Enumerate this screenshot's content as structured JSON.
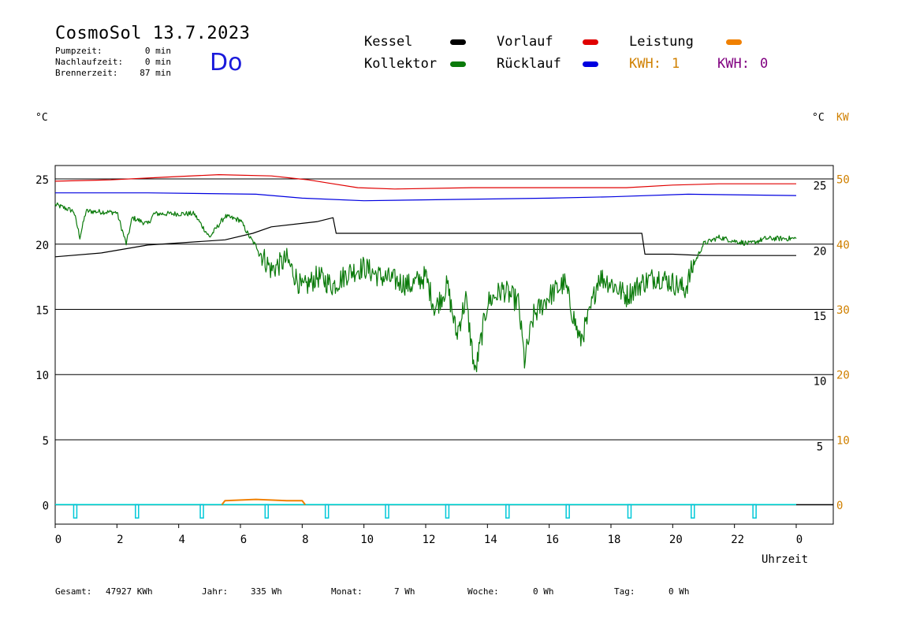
{
  "header": {
    "title": "CosmoSol 13.7.2023",
    "day": "Do",
    "stats": [
      {
        "label": "Pumpzeit:",
        "value": "0 min"
      },
      {
        "label": "Nachlaufzeit:",
        "value": "0 min"
      },
      {
        "label": "Brennerzeit:",
        "value": "87 min"
      }
    ]
  },
  "legend": {
    "kessel": {
      "label": "Kessel",
      "color": "#000000"
    },
    "kollektor": {
      "label": "Kollektor",
      "color": "#0a7a0a"
    },
    "vorlauf": {
      "label": "Vorlauf",
      "color": "#e00000"
    },
    "ruecklauf": {
      "label": "Rücklauf",
      "color": "#0000e0"
    },
    "leistung": {
      "label": "Leistung",
      "color": "#f08000"
    },
    "kwh1": {
      "label": "KWH:",
      "value": "1",
      "color": "#d08000"
    },
    "kwh2": {
      "label": "KWH:",
      "value": "0",
      "color": "#800080"
    }
  },
  "axes": {
    "left_unit": "°C",
    "right_unit": "°C",
    "right_unit2": "KW",
    "xlabel": "Uhrzeit"
  },
  "footer": [
    {
      "label": "Gesamt:",
      "value": "47927 KWh"
    },
    {
      "label": "Jahr:",
      "value": "335 Wh"
    },
    {
      "label": "Monat:",
      "value": "7 Wh"
    },
    {
      "label": "Woche:",
      "value": "0 Wh"
    },
    {
      "label": "Tag:",
      "value": "0 Wh"
    }
  ],
  "chart_data": {
    "type": "line",
    "xlim": [
      0,
      24
    ],
    "ylim": [
      -1.5,
      26
    ],
    "y2lim": [
      -3,
      52
    ],
    "x_ticks": [
      "0",
      "2",
      "4",
      "6",
      "8",
      "10",
      "12",
      "14",
      "16",
      "18",
      "20",
      "22",
      "0"
    ],
    "y_left_ticks": [
      "0",
      "5",
      "10",
      "15",
      "20",
      "25"
    ],
    "y_right_ticks": [
      "5",
      "10",
      "15",
      "20",
      "25"
    ],
    "y_right2_ticks": [
      "0",
      "10",
      "20",
      "30",
      "40",
      "50"
    ],
    "grid": true,
    "series": [
      {
        "name": "Vorlauf",
        "color": "#e00000",
        "x": [
          0,
          1.8,
          3.5,
          5.3,
          7.0,
          8.2,
          9.0,
          9.8,
          11.0,
          13.5,
          16.5,
          18.5,
          20.0,
          21.5,
          24.0
        ],
        "y": [
          24.8,
          24.9,
          25.1,
          25.3,
          25.2,
          24.9,
          24.6,
          24.3,
          24.2,
          24.3,
          24.3,
          24.3,
          24.5,
          24.6,
          24.6
        ]
      },
      {
        "name": "Rücklauf",
        "color": "#0000e0",
        "x": [
          0,
          3.0,
          6.5,
          8.0,
          10.0,
          13.0,
          16.0,
          18.0,
          20.5,
          24.0
        ],
        "y": [
          23.9,
          23.9,
          23.8,
          23.5,
          23.3,
          23.4,
          23.5,
          23.6,
          23.8,
          23.7
        ]
      },
      {
        "name": "Kessel",
        "color": "#000000",
        "x": [
          0,
          1.5,
          3.0,
          5.5,
          6.4,
          7.0,
          8.5,
          9.0,
          9.1,
          19.0,
          19.1,
          20.0,
          21.0,
          24.0
        ],
        "y": [
          19.0,
          19.3,
          19.9,
          20.3,
          20.8,
          21.3,
          21.7,
          22.0,
          20.8,
          20.8,
          19.2,
          19.2,
          19.1,
          19.1
        ]
      },
      {
        "name": "Kollektor",
        "color": "#0a7a0a",
        "x": [
          0,
          0.6,
          0.8,
          1.0,
          2.0,
          2.3,
          2.5,
          3.0,
          3.2,
          4.5,
          5.0,
          5.5,
          6.0,
          6.3,
          6.6,
          7.0,
          7.5,
          8.0,
          8.5,
          9.0,
          9.5,
          10.0,
          10.5,
          11.0,
          11.5,
          12.0,
          12.3,
          12.7,
          13.0,
          13.3,
          13.6,
          14.0,
          14.5,
          15.0,
          15.2,
          15.5,
          16.0,
          16.5,
          17.0,
          17.3,
          17.6,
          18.0,
          18.5,
          19.0,
          19.5,
          20.0,
          20.4,
          20.7,
          21.0,
          21.5,
          22.0,
          22.5,
          23.0,
          24.0
        ],
        "y": [
          23.0,
          22.5,
          20.5,
          22.5,
          22.4,
          20.0,
          22.0,
          21.5,
          22.3,
          22.3,
          20.5,
          22.1,
          21.8,
          20.5,
          19.5,
          18.0,
          18.8,
          16.5,
          17.5,
          16.8,
          17.8,
          18.2,
          17.5,
          17.2,
          16.8,
          17.5,
          15.0,
          16.8,
          13.0,
          15.8,
          10.0,
          15.5,
          16.5,
          15.5,
          11.0,
          14.5,
          16.0,
          17.0,
          12.5,
          14.5,
          17.5,
          17.0,
          16.0,
          17.0,
          17.5,
          17.0,
          16.5,
          18.5,
          20.0,
          20.5,
          20.2,
          20.0,
          20.4,
          20.4
        ]
      },
      {
        "name": "Leistung",
        "color": "#f08000",
        "x": [
          5.4,
          5.5,
          6.5,
          7.5,
          8.0,
          8.1
        ],
        "y": [
          0,
          0.3,
          0.4,
          0.3,
          0.3,
          0
        ]
      }
    ],
    "pump_marker_hours": [
      0.65,
      2.65,
      4.75,
      6.85,
      8.8,
      10.75,
      12.7,
      14.65,
      16.6,
      18.6,
      20.65,
      22.65
    ]
  }
}
